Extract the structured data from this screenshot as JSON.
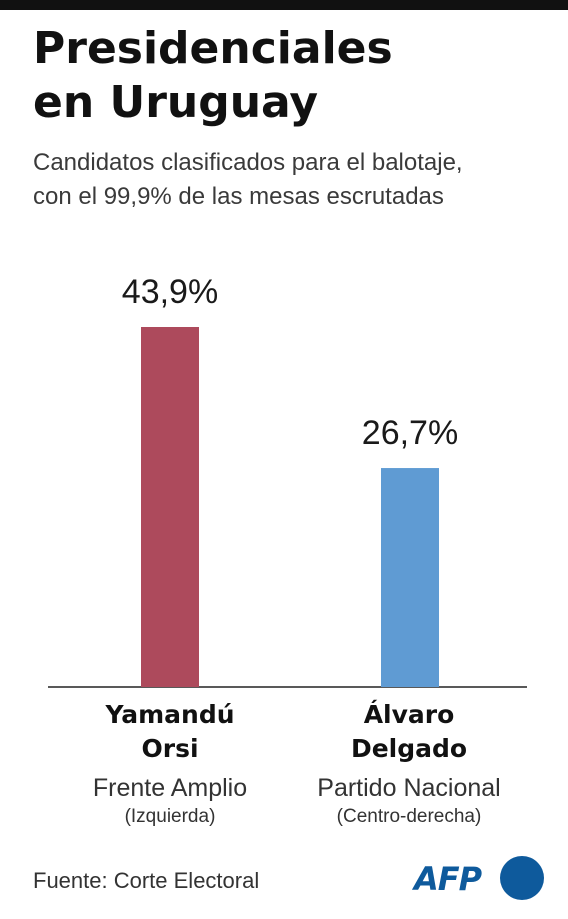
{
  "header": {
    "title_lines": [
      "Presidenciales",
      "en Uruguay"
    ],
    "subtitle_lines": [
      "Candidatos clasificados para el balotaje,",
      "con el 99,9% de las mesas escrutadas"
    ]
  },
  "chart_data": {
    "type": "bar",
    "title": "Presidenciales en Uruguay",
    "subtitle": "Candidatos clasificados para el balotaje, con el 99,9% de las mesas escrutadas",
    "categories": [
      "Yamandú Orsi",
      "Álvaro Delgado"
    ],
    "values": [
      43.9,
      26.7
    ],
    "value_labels": [
      "43,9%",
      "26,7%"
    ],
    "unit": "%",
    "colors": [
      "#ad4a5c",
      "#5f9bd3"
    ],
    "ylim": [
      0,
      43.9
    ],
    "grid": false,
    "legend": "none"
  },
  "candidates": [
    {
      "name_lines": [
        "Yamandú",
        "Orsi"
      ],
      "party": "Frente Amplio",
      "lean": "(Izquierda)"
    },
    {
      "name_lines": [
        "Álvaro",
        "Delgado"
      ],
      "party": "Partido Nacional",
      "lean": "(Centro-derecha)"
    }
  ],
  "footer": {
    "source": "Fuente: Corte Electoral",
    "logo_text": "AFP"
  }
}
